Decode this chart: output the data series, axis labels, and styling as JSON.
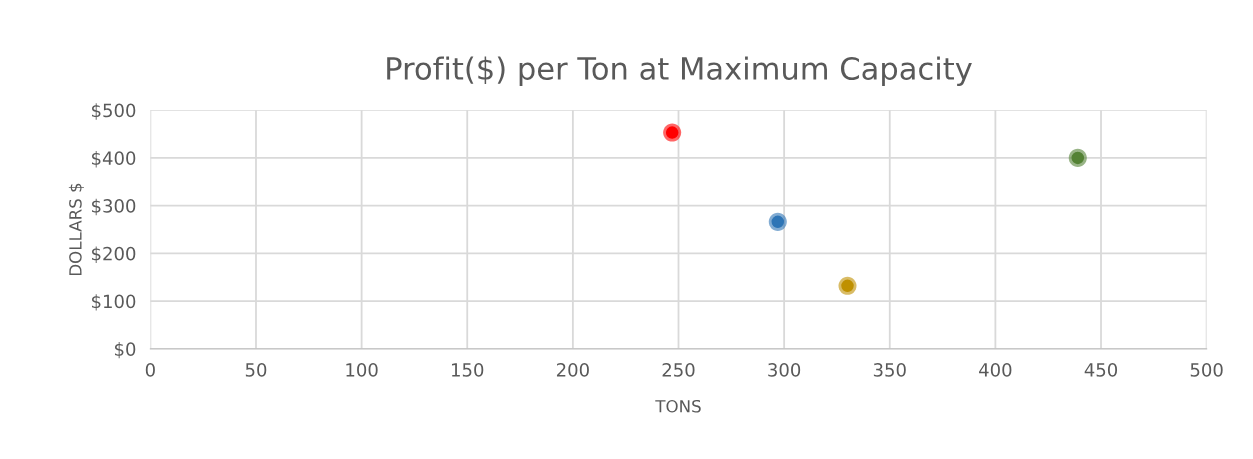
{
  "chart_data": {
    "type": "scatter",
    "title": "Profit($) per Ton at Maximum Capacity",
    "xlabel": "TONS",
    "ylabel": "DOLLARS $",
    "x": [
      247,
      297,
      330,
      439
    ],
    "values": [
      453,
      266,
      132,
      400
    ],
    "colors": [
      "#ff0000",
      "#2e75b6",
      "#bf9000",
      "#548235"
    ],
    "marker": "circle",
    "grid": true,
    "xlim": [
      0,
      500
    ],
    "xticks": [
      0,
      50,
      100,
      150,
      200,
      250,
      300,
      350,
      400,
      450,
      500
    ],
    "ylim": [
      0,
      500
    ],
    "yticks": [
      {
        "value": 0,
        "label": "$0"
      },
      {
        "value": 100,
        "label": "$100"
      },
      {
        "value": 200,
        "label": "$200"
      },
      {
        "value": 300,
        "label": "$300"
      },
      {
        "value": 400,
        "label": "$400"
      },
      {
        "value": 500,
        "label": "$500"
      }
    ]
  }
}
